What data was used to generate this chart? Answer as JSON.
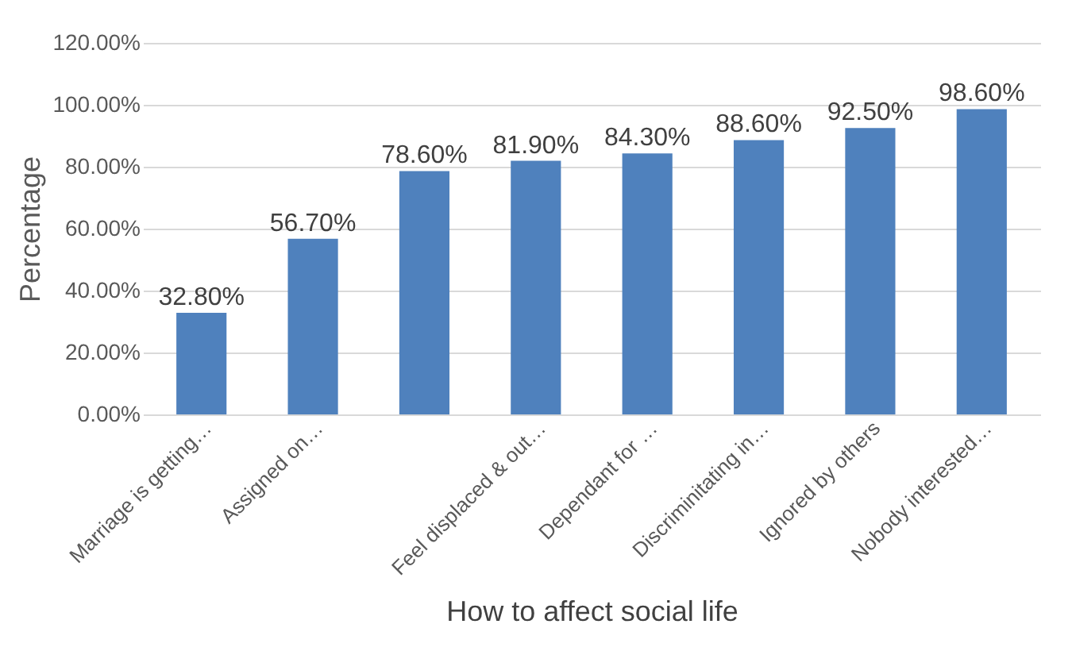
{
  "chart_data": {
    "type": "bar",
    "xlabel": "How to affect social life",
    "ylabel": "Percentage",
    "categories": [
      "Marriage is getting…",
      "Assigned on…",
      null,
      "Feel displaced & out…",
      "Dependant for …",
      "Discriminitating in…",
      "Ignored by others",
      "Nobody interested…"
    ],
    "values": [
      32.8,
      56.7,
      78.6,
      81.9,
      84.3,
      88.6,
      92.5,
      98.6
    ],
    "value_labels": [
      "32.80%",
      "56.70%",
      "78.60%",
      "81.90%",
      "84.30%",
      "88.60%",
      "92.50%",
      "98.60%"
    ],
    "color": "#4f81bd",
    "ylim": [
      0,
      120
    ],
    "yticks": [
      {
        "value": 0,
        "label": "0.00%"
      },
      {
        "value": 20,
        "label": "20.00%"
      },
      {
        "value": 40,
        "label": "40.00%"
      },
      {
        "value": 60,
        "label": "60.00%"
      },
      {
        "value": 80,
        "label": "80.00%"
      },
      {
        "value": 100,
        "label": "100.00%"
      },
      {
        "value": 120,
        "label": "120.00%"
      }
    ],
    "grid": "y"
  }
}
